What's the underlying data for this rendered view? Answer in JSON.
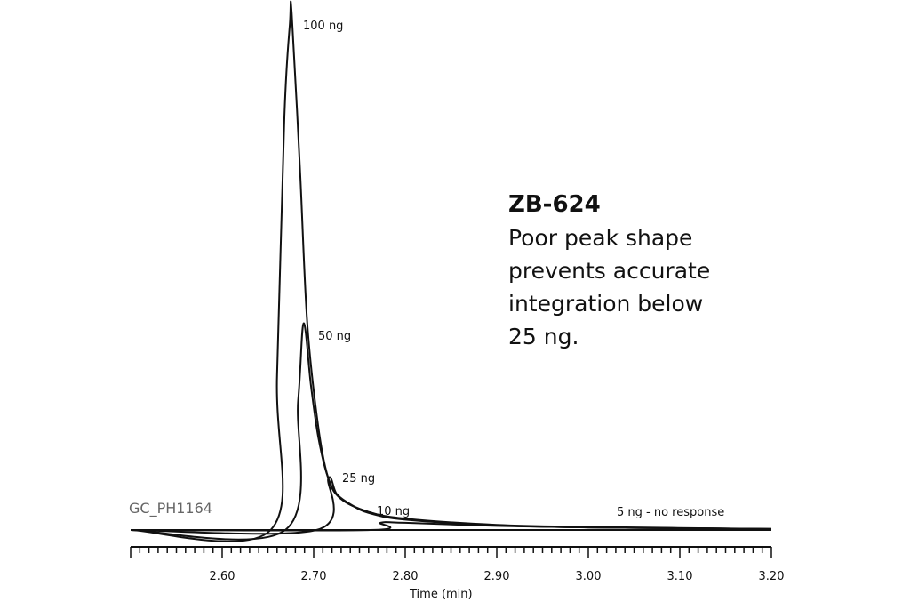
{
  "chart_data": {
    "type": "line",
    "title": "",
    "xlabel": "Time (min)",
    "ylabel": "",
    "xlim": [
      2.5,
      3.2
    ],
    "xticks": [
      "2.60",
      "2.70",
      "2.80",
      "2.90",
      "3.00",
      "3.10",
      "3.20"
    ],
    "minor_tick_step": 0.01,
    "y_units": "relative response (% of 100 ng peak)",
    "grid": false,
    "line_color": "#111111",
    "series": [
      {
        "name": "100 ng",
        "x": [
          2.5,
          2.653,
          2.66,
          2.668,
          2.674,
          2.676,
          2.685,
          2.693,
          2.705,
          2.716,
          2.73,
          2.76,
          2.8,
          2.9,
          3.0,
          3.2
        ],
        "y": [
          0,
          0,
          30,
          80,
          98,
          100,
          70,
          40,
          20,
          10,
          6,
          3.5,
          2.2,
          1.0,
          0.6,
          0.2
        ]
      },
      {
        "name": "50 ng",
        "x": [
          2.5,
          2.669,
          2.683,
          2.689,
          2.697,
          2.705,
          2.716,
          2.73,
          2.76,
          2.8,
          2.9,
          3.0,
          3.2
        ],
        "y": [
          0,
          0,
          25,
          40,
          28,
          18,
          10,
          6,
          3.5,
          2.1,
          0.9,
          0.5,
          0.2
        ]
      },
      {
        "name": "25 ng",
        "x": [
          2.5,
          2.703,
          2.716,
          2.725,
          2.74,
          2.76,
          2.8,
          2.9,
          3.0,
          3.2
        ],
        "y": [
          0,
          0,
          10,
          7,
          5,
          3.3,
          2.0,
          0.9,
          0.5,
          0.2
        ]
      },
      {
        "name": "10 ng",
        "x": [
          2.5,
          2.762,
          2.773,
          2.8,
          2.9,
          3.0,
          3.2
        ],
        "y": [
          0,
          0,
          1.4,
          1.4,
          0.8,
          0.5,
          0.2
        ]
      },
      {
        "name": "5 ng - no response",
        "x": [
          2.5,
          3.2
        ],
        "y": [
          0,
          0
        ]
      }
    ],
    "peak_labels": [
      "100 ng",
      "50 ng",
      "25 ng",
      "10 ng",
      "5 ng - no response"
    ]
  },
  "annotation": {
    "title": "ZB-624",
    "lines": [
      "Poor peak shape",
      "prevents accurate",
      "integration below",
      "25 ng."
    ]
  },
  "figure_code": "GC_PH1164"
}
